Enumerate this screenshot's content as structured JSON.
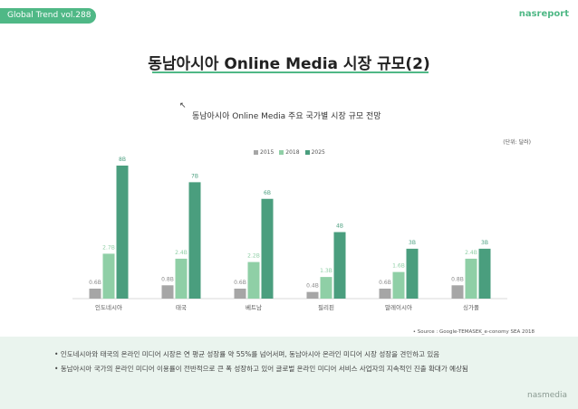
{
  "header": {
    "tag": "Global Trend vol.288",
    "brand": "nasreport"
  },
  "title": "동남아시아 Online Media 시장 규모(2)",
  "subtitle": "동남아시아 Online Media 주요 국가별 시장 규모 전망",
  "unit": "(단위: 달러)",
  "source": "• Source : Google-TEMASEK_e-conomy SEA 2018",
  "notes": [
    "인도네시아와 태국의 온라인 미디어 시장은 연 평균 성장률 약 55%를 넘어서며, 동남아시아 온라인 미디어 시장 성장을 견인하고 있음",
    "동남아시아 국가의 온라인 미디어 이용률이 전반적으로 큰 폭 성장하고 있어 글로벌 온라인 미디어 서비스 사업자의 지속적인 진출 확대가 예상됨"
  ],
  "brand_bottom": "nasmedia",
  "colors": {
    "accent": "#4fb886",
    "s2015": "#a6a6a6",
    "s2018": "#8fcfa6",
    "s2025": "#4a9e7e"
  },
  "chart_data": {
    "type": "bar",
    "categories": [
      "인도네시아",
      "태국",
      "베트남",
      "필리핀",
      "말레이시아",
      "싱가폴"
    ],
    "series": [
      {
        "name": "2015",
        "values": [
          0.6,
          0.8,
          0.6,
          0.4,
          0.6,
          0.8
        ],
        "labels": [
          "0.6B",
          "0.8B",
          "0.6B",
          "0.4B",
          "0.6B",
          "0.8B"
        ]
      },
      {
        "name": "2018",
        "values": [
          2.7,
          2.4,
          2.2,
          1.3,
          1.6,
          2.4
        ],
        "labels": [
          "2.7B",
          "2.4B",
          "2.2B",
          "1.3B",
          "1.6B",
          "2.4B"
        ]
      },
      {
        "name": "2025",
        "values": [
          8,
          7,
          6,
          4,
          3,
          3
        ],
        "labels": [
          "8B",
          "7B",
          "6B",
          "4B",
          "3B",
          "3B"
        ]
      }
    ],
    "ylim": [
      0,
      8
    ]
  }
}
